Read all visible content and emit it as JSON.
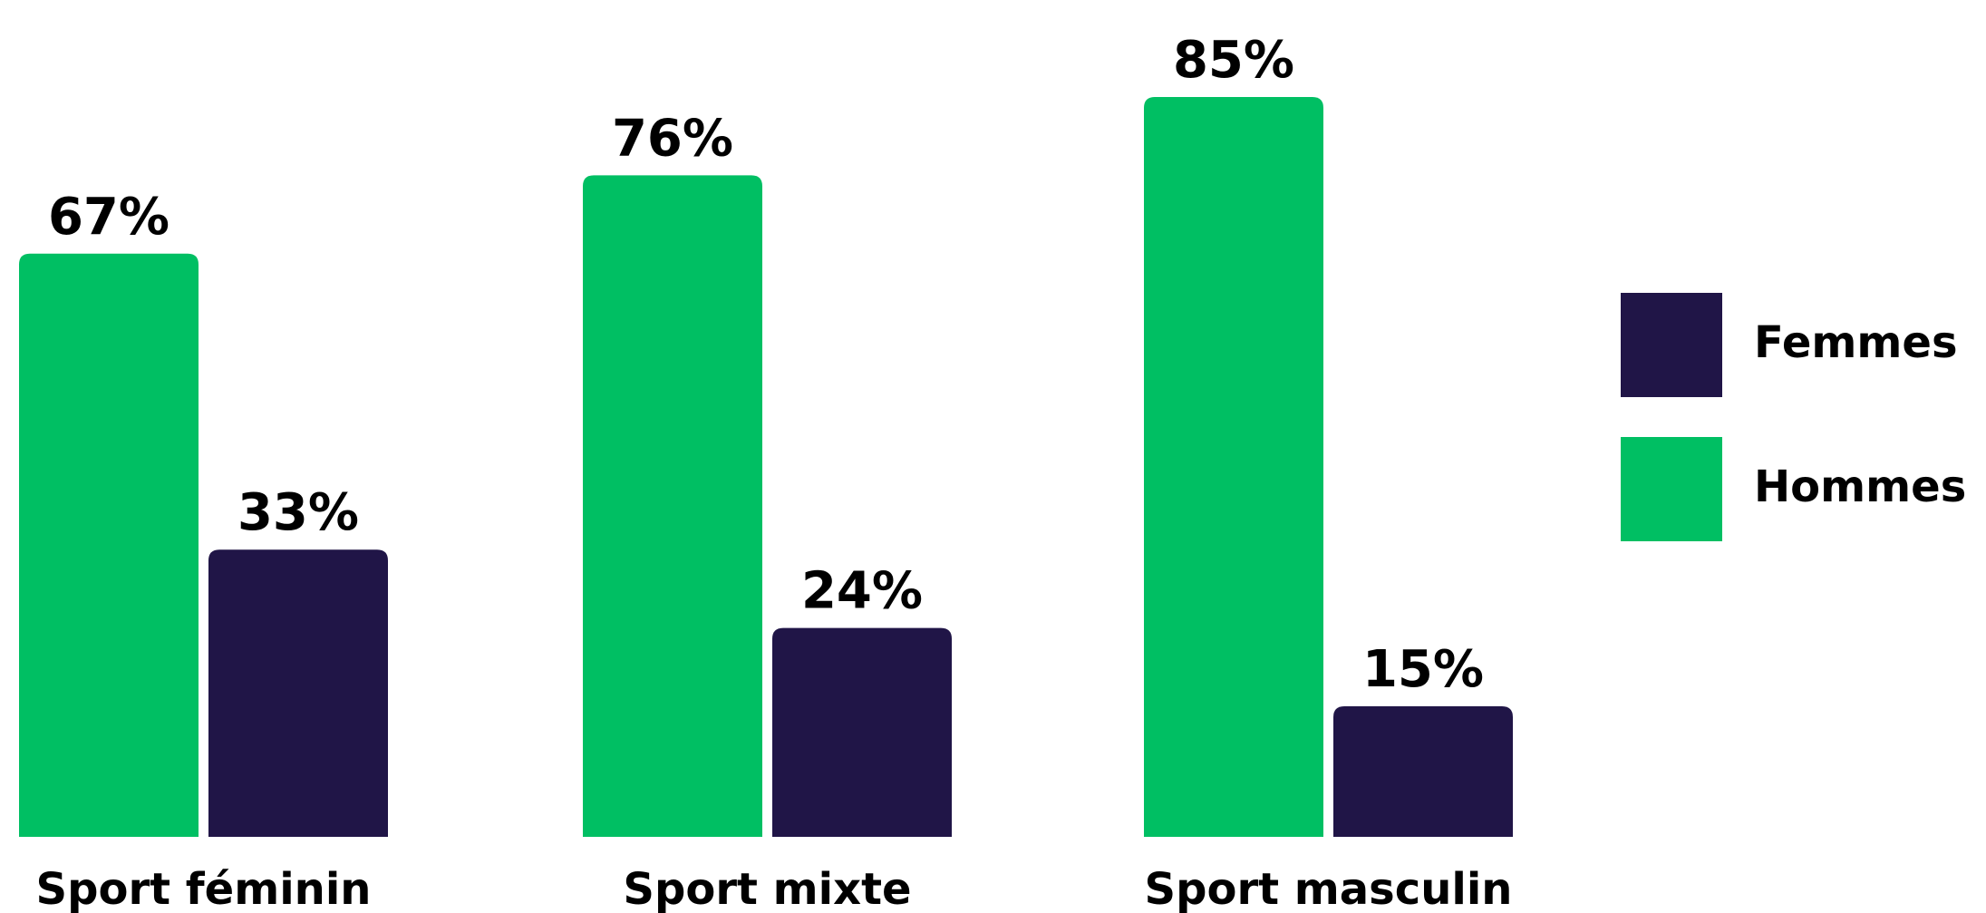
{
  "chart_data": {
    "type": "bar",
    "categories": [
      "Sport féminin",
      "Sport mixte",
      "Sport masculin"
    ],
    "series": [
      {
        "name": "Hommes",
        "color": "#00bf63",
        "values": [
          67,
          76,
          85
        ],
        "value_labels": [
          "67%",
          "76%",
          "85%"
        ]
      },
      {
        "name": "Femmes",
        "color": "#201547",
        "values": [
          33,
          24,
          15
        ],
        "value_labels": [
          "33%",
          "24%",
          "15%"
        ]
      }
    ],
    "legend": "right"
  }
}
